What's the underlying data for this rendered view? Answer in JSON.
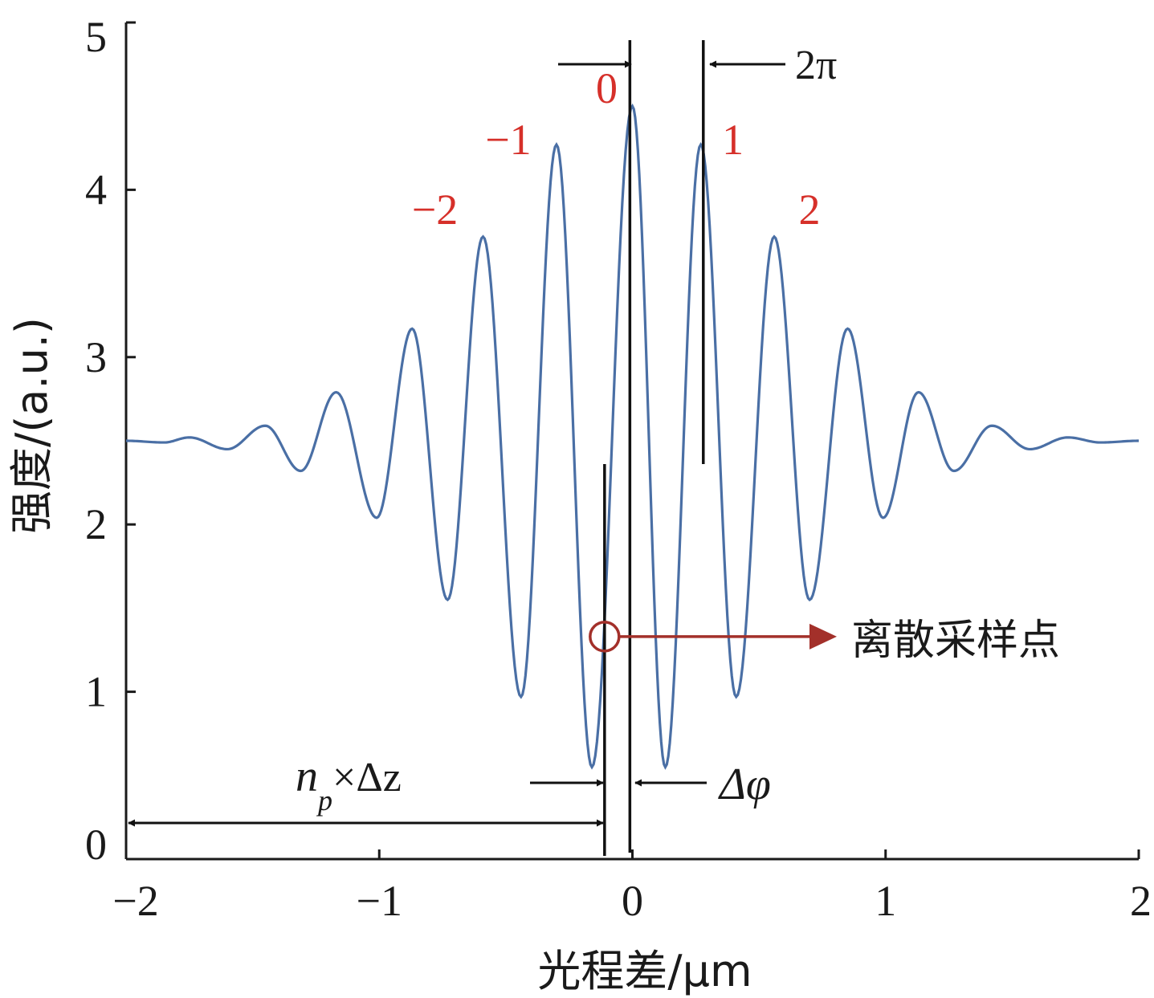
{
  "chart_data": {
    "type": "line",
    "title": "",
    "xlabel": "光程差/μm",
    "ylabel": "强度/(a.u.)",
    "xlim": [
      -2,
      2
    ],
    "ylim": [
      0,
      5
    ],
    "xticks": [
      "−2",
      "−1",
      "0",
      "1",
      "2"
    ],
    "yticks": [
      "0",
      "1",
      "2",
      "3",
      "4",
      "5"
    ],
    "grid": false,
    "series": [
      {
        "color": "#4a6fa5",
        "points": [
          [
            -2.0,
            2.5
          ],
          [
            -1.85,
            2.49
          ],
          [
            -1.75,
            2.52
          ],
          [
            -1.6,
            2.45
          ],
          [
            -1.45,
            2.59
          ],
          [
            -1.31,
            2.32
          ],
          [
            -1.17,
            2.79
          ],
          [
            -1.01,
            2.04
          ],
          [
            -0.87,
            3.17
          ],
          [
            -0.73,
            1.55
          ],
          [
            -0.59,
            3.72
          ],
          [
            -0.44,
            0.97
          ],
          [
            -0.3,
            4.27
          ],
          [
            -0.16,
            0.55
          ],
          [
            0.0,
            4.5
          ],
          [
            0.13,
            0.55
          ],
          [
            0.27,
            4.27
          ],
          [
            0.41,
            0.97
          ],
          [
            0.56,
            3.72
          ],
          [
            0.7,
            1.55
          ],
          [
            0.85,
            3.17
          ],
          [
            0.99,
            2.04
          ],
          [
            1.13,
            2.79
          ],
          [
            1.27,
            2.32
          ],
          [
            1.42,
            2.59
          ],
          [
            1.57,
            2.45
          ],
          [
            1.72,
            2.52
          ],
          [
            1.85,
            2.49
          ],
          [
            2.0,
            2.5
          ]
        ]
      }
    ],
    "peak_orders": [
      {
        "label": "−2",
        "x": -0.59,
        "y": 3.72
      },
      {
        "label": "−1",
        "x": -0.3,
        "y": 4.27
      },
      {
        "label": "0",
        "x": 0.0,
        "y": 4.5
      },
      {
        "label": "1",
        "x": 0.27,
        "y": 4.27
      },
      {
        "label": "2",
        "x": 0.56,
        "y": 3.72
      }
    ],
    "annotations": {
      "two_pi": "2π",
      "delta_phi": "Δφ",
      "np_dz_main": "n",
      "np_dz_sub": "p",
      "np_dz_rest": "×Δz",
      "sample_point": "离散采样点",
      "sample_x": -0.11,
      "sample_y": 1.33,
      "marker_color": "#a3302a",
      "vline_zero_x": -0.01,
      "vline_one_x": 0.28,
      "vline_sample_x": -0.11
    }
  }
}
